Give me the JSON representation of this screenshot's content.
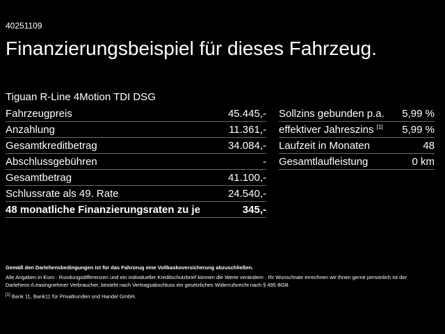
{
  "offer_id": "40251109",
  "headline": "Finanzierungsbeispiel für dieses Fahrzeug.",
  "model": "Tiguan R-Line 4Motion TDI DSG",
  "left_rows": [
    {
      "label": "Fahrzeugpreis",
      "value": "45.445,-"
    },
    {
      "label": "Anzahlung",
      "value": "11.361,-"
    },
    {
      "label": "Gesamtkreditbetrag",
      "value": "34.084,-"
    },
    {
      "label": "Abschlussgebühren",
      "value": "-"
    },
    {
      "label": "Gesamtbetrag",
      "value": "41.100,-"
    },
    {
      "label": "Schlussrate als 49. Rate",
      "value": "24.540,-"
    },
    {
      "label": "48 monatliche Finanzierungsraten zu je",
      "value": "345,-"
    }
  ],
  "right_rows": [
    {
      "label": "Sollzins gebunden p.a.",
      "value": "5,99 %"
    },
    {
      "label": "effektiver Jahreszins",
      "ref": "[1]",
      "value": "5,99 %"
    },
    {
      "label": "Laufzeit in Monaten",
      "value": "48"
    },
    {
      "label": "Gesamtlaufleistung",
      "value": "0 km"
    }
  ],
  "notes": {
    "insurance": "Gemäß den Darlehensbedingungen ist für das Fahrzeug eine Vollkaskoversicherung abzuschließen.",
    "disclaimer": "Alle Angaben in Euro · Rundungsdifferenzen und ein individueller Kreditschutzbrief können die Werte verändern · Ihr Wunschrate errechnen wir Ihnen gerne persönlich Ist der Darlehens-/Leasingnehmer Verbraucher, besteht nach Vertragsabschluss ein gesetzliches Widerrufsrecht nach § 495 BGB",
    "bank_ref": "[1]",
    "bank": "Bank 11, Bank11 für Privatkunden und Handel GmbH."
  }
}
